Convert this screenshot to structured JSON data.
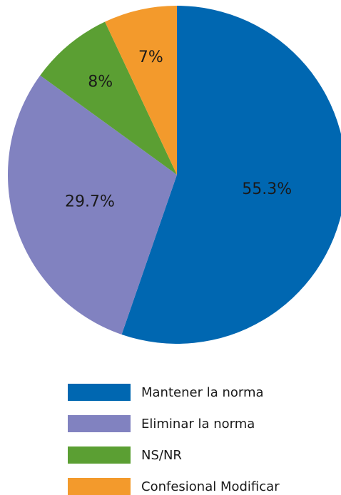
{
  "chart_data": {
    "type": "pie",
    "categories": [
      "Mantener la norma",
      "Eliminar la norma",
      "NS/NR",
      "Confesional Modificar"
    ],
    "values": [
      55.3,
      29.7,
      8,
      7
    ],
    "value_labels": [
      "55.3%",
      "29.7%",
      "8%",
      "7%"
    ],
    "colors": [
      "#0067b1",
      "#8182c0",
      "#5b9f33",
      "#f39a2c"
    ],
    "legend": "bottom"
  }
}
